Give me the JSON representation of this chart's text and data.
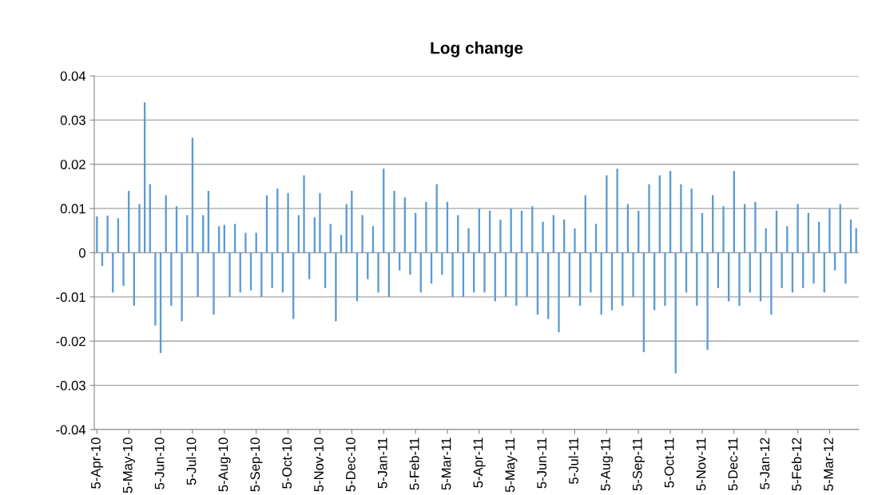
{
  "chart_data": {
    "type": "bar",
    "title": "Log change",
    "categories": [
      "5-Apr-10",
      null,
      null,
      null,
      null,
      null,
      "5-May-10",
      null,
      null,
      null,
      null,
      null,
      "5-Jun-10",
      null,
      null,
      null,
      null,
      null,
      "5-Jul-10",
      null,
      null,
      null,
      null,
      null,
      "5-Aug-10",
      null,
      null,
      null,
      null,
      null,
      "5-Sep-10",
      null,
      null,
      null,
      null,
      null,
      "5-Oct-10",
      null,
      null,
      null,
      null,
      null,
      "5-Nov-10",
      null,
      null,
      null,
      null,
      null,
      "5-Dec-10",
      null,
      null,
      null,
      null,
      null,
      "5-Jan-11",
      null,
      null,
      null,
      null,
      null,
      "5-Feb-11",
      null,
      null,
      null,
      null,
      null,
      "5-Mar-11",
      null,
      null,
      null,
      null,
      null,
      "5-Apr-11",
      null,
      null,
      null,
      null,
      null,
      "5-May-11",
      null,
      null,
      null,
      null,
      null,
      "5-Jun-11",
      null,
      null,
      null,
      null,
      null,
      "5-Jul-11",
      null,
      null,
      null,
      null,
      null,
      "5-Aug-11",
      null,
      null,
      null,
      null,
      null,
      "5-Sep-11",
      null,
      null,
      null,
      null,
      null,
      "5-Oct-11",
      null,
      null,
      null,
      null,
      null,
      "5-Nov-11",
      null,
      null,
      null,
      null,
      null,
      "5-Dec-11",
      null,
      null,
      null,
      null,
      null,
      "5-Jan-12",
      null,
      null,
      null,
      null,
      null,
      "5-Feb-12",
      null,
      null,
      null,
      null,
      null,
      "5-Mar-12",
      null,
      null,
      null,
      null,
      null
    ],
    "values": [
      0.0082,
      -0.003,
      0.0084,
      -0.009,
      0.0078,
      -0.0075,
      0.014,
      -0.012,
      0.011,
      0.034,
      0.0155,
      -0.0165,
      -0.0227,
      0.013,
      -0.012,
      0.0105,
      -0.0155,
      0.0085,
      0.026,
      -0.01,
      0.0085,
      0.014,
      -0.014,
      0.006,
      0.0063,
      -0.01,
      0.0065,
      -0.009,
      0.0045,
      -0.0085,
      0.0045,
      -0.01,
      0.013,
      -0.008,
      0.0145,
      -0.009,
      0.0135,
      -0.015,
      0.0085,
      0.0175,
      -0.006,
      0.008,
      0.0135,
      -0.008,
      0.0065,
      -0.0155,
      0.004,
      0.011,
      0.014,
      -0.011,
      0.0085,
      -0.006,
      0.006,
      -0.009,
      0.019,
      -0.01,
      0.014,
      -0.004,
      0.0125,
      -0.005,
      0.009,
      -0.009,
      0.0115,
      -0.007,
      0.0155,
      -0.005,
      0.0115,
      -0.01,
      0.0085,
      -0.01,
      0.0055,
      -0.009,
      0.01,
      -0.009,
      0.0095,
      -0.011,
      0.0075,
      -0.01,
      0.01,
      -0.012,
      0.0095,
      -0.01,
      0.0105,
      -0.014,
      0.007,
      -0.015,
      0.0085,
      -0.018,
      0.0075,
      -0.01,
      0.0055,
      -0.012,
      0.013,
      -0.009,
      0.0065,
      -0.014,
      0.0175,
      -0.013,
      0.019,
      -0.012,
      0.011,
      -0.01,
      0.0095,
      -0.0225,
      0.0155,
      -0.013,
      0.0175,
      -0.012,
      0.0185,
      -0.0273,
      0.0155,
      -0.009,
      0.0145,
      -0.012,
      0.009,
      -0.022,
      0.013,
      -0.008,
      0.0105,
      -0.011,
      0.0185,
      -0.012,
      0.011,
      -0.009,
      0.0115,
      -0.011,
      0.0055,
      -0.014,
      0.0095,
      -0.008,
      0.006,
      -0.009,
      0.011,
      -0.008,
      0.009,
      -0.007,
      0.007,
      -0.009,
      0.01,
      -0.004,
      0.011,
      -0.007,
      0.0075,
      0.0055
    ],
    "color": "#5b9bd5",
    "ylim": [
      -0.04,
      0.04
    ],
    "yticks": [
      -0.04,
      -0.03,
      -0.02,
      -0.01,
      0,
      0.01,
      0.02,
      0.03,
      0.04
    ],
    "grid": "y"
  }
}
